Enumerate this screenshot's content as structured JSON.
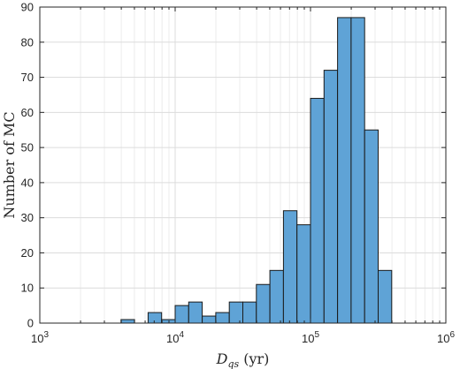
{
  "chart_data": {
    "type": "bar",
    "title": "",
    "xlabel": "D_qs (yr)",
    "ylabel": "Number of MC",
    "xscale": "log",
    "xlim": [
      1000,
      1000000
    ],
    "ylim": [
      0,
      90
    ],
    "yticks": [
      0,
      10,
      20,
      30,
      40,
      50,
      60,
      70,
      80,
      90
    ],
    "xticks": [
      {
        "base": "10",
        "exp": "3",
        "value": 1000
      },
      {
        "base": "10",
        "exp": "4",
        "value": 10000
      },
      {
        "base": "10",
        "exp": "5",
        "value": 100000
      },
      {
        "base": "10",
        "exp": "6",
        "value": 1000000
      }
    ],
    "grid": true,
    "bar_color": "#5FA3D6",
    "bar_edge_color": "#1a1a1a",
    "bins": [
      {
        "x0": 3981,
        "x1": 5012,
        "value": 1
      },
      {
        "x0": 5012,
        "x1": 6310,
        "value": 0
      },
      {
        "x0": 6310,
        "x1": 7943,
        "value": 3
      },
      {
        "x0": 7943,
        "x1": 10000,
        "value": 1
      },
      {
        "x0": 10000,
        "x1": 12589,
        "value": 5
      },
      {
        "x0": 12589,
        "x1": 15849,
        "value": 6
      },
      {
        "x0": 15849,
        "x1": 19953,
        "value": 2
      },
      {
        "x0": 19953,
        "x1": 25119,
        "value": 3
      },
      {
        "x0": 25119,
        "x1": 31623,
        "value": 6
      },
      {
        "x0": 31623,
        "x1": 39811,
        "value": 6
      },
      {
        "x0": 39811,
        "x1": 50119,
        "value": 11
      },
      {
        "x0": 50119,
        "x1": 63096,
        "value": 15
      },
      {
        "x0": 63096,
        "x1": 79433,
        "value": 32
      },
      {
        "x0": 79433,
        "x1": 100000,
        "value": 28
      },
      {
        "x0": 100000,
        "x1": 125893,
        "value": 64
      },
      {
        "x0": 125893,
        "x1": 158489,
        "value": 72
      },
      {
        "x0": 158489,
        "x1": 199526,
        "value": 87
      },
      {
        "x0": 199526,
        "x1": 251189,
        "value": 87
      },
      {
        "x0": 251189,
        "x1": 316228,
        "value": 55
      },
      {
        "x0": 316228,
        "x1": 398107,
        "value": 15
      }
    ]
  }
}
